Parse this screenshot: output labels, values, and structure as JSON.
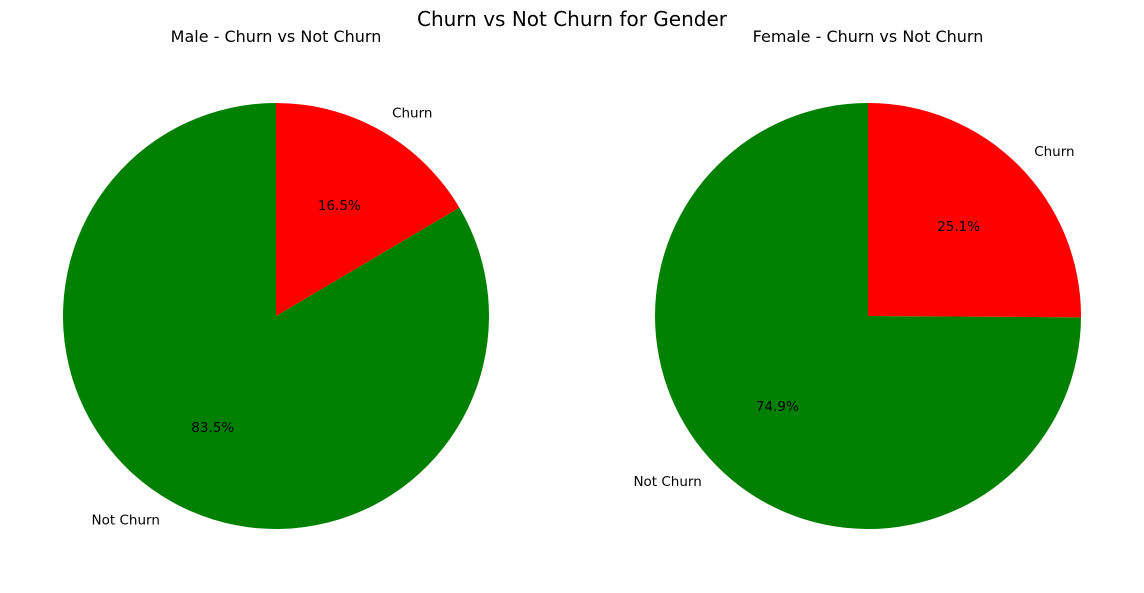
{
  "title": "Churn vs Not Churn for Gender",
  "colors": {
    "Churn": "#ff0000",
    "Not Churn": "#008000"
  },
  "chart_data": [
    {
      "type": "pie",
      "title": "Male - Churn vs Not Churn",
      "labels": [
        "Churn",
        "Not Churn"
      ],
      "values": [
        16.5,
        83.5
      ],
      "percent_labels": [
        "16.5%",
        "83.5%"
      ],
      "start_angle": 90,
      "direction": "clockwise"
    },
    {
      "type": "pie",
      "title": "Female - Churn vs Not Churn",
      "labels": [
        "Churn",
        "Not Churn"
      ],
      "values": [
        25.1,
        74.9
      ],
      "percent_labels": [
        "25.1%",
        "74.9%"
      ],
      "start_angle": 90,
      "direction": "clockwise"
    }
  ]
}
